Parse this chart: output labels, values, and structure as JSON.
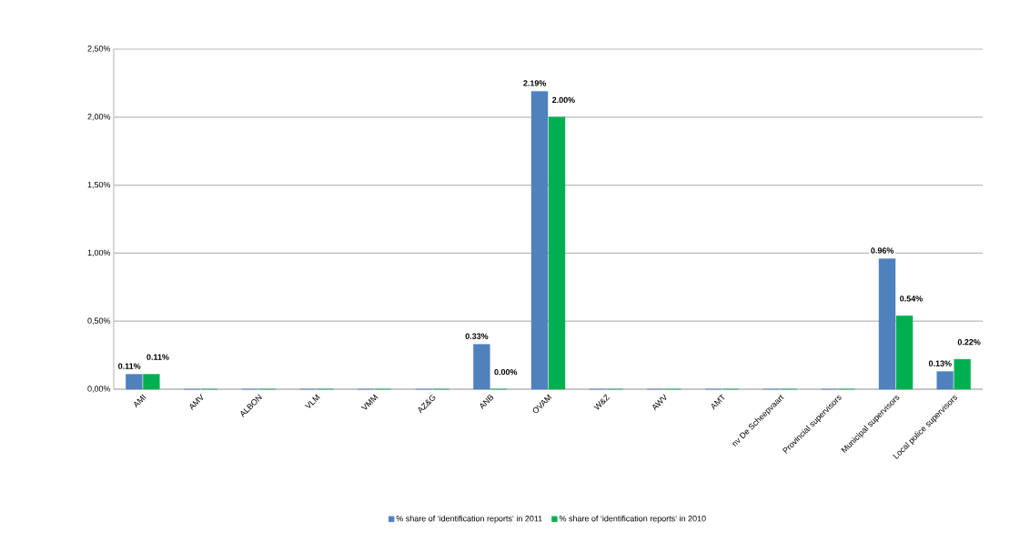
{
  "chart_data": {
    "type": "bar",
    "categories": [
      "AMI",
      "AMV",
      "ALBON",
      "VLM",
      "VMM",
      "AZ&G",
      "ANB",
      "OVAM",
      "W&Z",
      "AWV",
      "AMT",
      "nv De Scheepvaart",
      "Provincial supervisors",
      "Municipal supervisors",
      "Local police supervisors"
    ],
    "series": [
      {
        "name": "% share of ‘identification reports’ in 2011",
        "color": "#4f81bd",
        "values": [
          0.11,
          0,
          0,
          0,
          0,
          0,
          0.33,
          2.19,
          0,
          0,
          0,
          0,
          0,
          0.96,
          0.13
        ],
        "value_labels": [
          "0.11%",
          null,
          null,
          null,
          null,
          null,
          "0.33%",
          "2.19%",
          null,
          null,
          null,
          null,
          null,
          "0.96%",
          "0.13%"
        ]
      },
      {
        "name": "% share of ‘identification reports’ in 2010",
        "color": "#00b050",
        "values": [
          0.11,
          0,
          0,
          0,
          0,
          0,
          0,
          2.0,
          0,
          0,
          0,
          0,
          0,
          0.54,
          0.22
        ],
        "value_labels": [
          "0.11%",
          null,
          null,
          null,
          null,
          null,
          "0.00%",
          "2.00%",
          null,
          null,
          null,
          null,
          null,
          "0.54%",
          "0.22%"
        ]
      }
    ],
    "ylim": [
      0,
      2.5
    ],
    "yticks": [
      {
        "value": 0,
        "label": "0,00%"
      },
      {
        "value": 0.5,
        "label": "0,50%"
      },
      {
        "value": 1.0,
        "label": "1,00%"
      },
      {
        "value": 1.5,
        "label": "1,50%"
      },
      {
        "value": 2.0,
        "label": "2,00%"
      },
      {
        "value": 2.5,
        "label": "2,50%"
      }
    ],
    "grid": "y",
    "legend": "bottom"
  }
}
